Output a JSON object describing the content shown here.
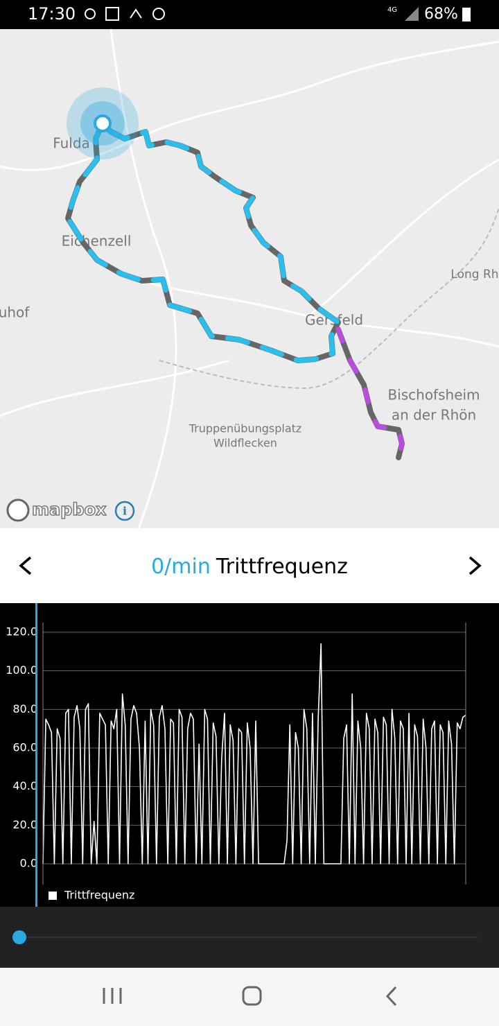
{
  "status_bar": {
    "time": "17:30",
    "network": "4G",
    "battery": "68%"
  },
  "map": {
    "places": [
      "Fulda",
      "Eichenzell",
      "uhof",
      "Long Rh",
      "Gersfeld",
      "Bischofsheim",
      "an der Rhön",
      "Truppenübungsplatz",
      "Wildflecken"
    ],
    "attribution": "mapbox"
  },
  "header": {
    "value": "0/min",
    "title": "Trittfrequenz"
  },
  "chart_data": {
    "type": "line",
    "ylim": [
      0,
      120
    ],
    "yticks": [
      {
        "value": 0,
        "label": "0.0"
      },
      {
        "value": 20,
        "label": "20.0"
      },
      {
        "value": 40,
        "label": "40.0"
      },
      {
        "value": 60,
        "label": "60.0"
      },
      {
        "value": 80,
        "label": "80.0"
      },
      {
        "value": 100,
        "label": "100.0"
      },
      {
        "value": 120,
        "label": "120.0"
      }
    ],
    "grid": true,
    "legend": "bottom-left",
    "series": [
      {
        "name": "Trittfrequenz",
        "color": "#ffffff",
        "values": [
          0,
          75,
          72,
          68,
          0,
          70,
          65,
          0,
          78,
          80,
          0,
          76,
          82,
          70,
          0,
          80,
          83,
          0,
          22,
          0,
          78,
          75,
          72,
          0,
          74,
          70,
          80,
          0,
          88,
          72,
          0,
          75,
          82,
          78,
          60,
          0,
          74,
          0,
          80,
          72,
          0,
          76,
          82,
          70,
          0,
          75,
          73,
          0,
          80,
          76,
          0,
          70,
          78,
          75,
          0,
          62,
          0,
          80,
          75,
          0,
          73,
          66,
          0,
          55,
          78,
          0,
          72,
          64,
          0,
          70,
          68,
          0,
          73,
          60,
          0,
          74,
          0,
          0,
          0,
          0,
          0,
          0,
          0,
          0,
          0,
          0,
          12,
          72,
          0,
          68,
          60,
          0,
          80,
          70,
          0,
          78,
          0,
          75,
          114,
          0,
          0,
          0,
          0,
          0,
          0,
          0,
          65,
          72,
          0,
          88,
          0,
          74,
          60,
          0,
          78,
          70,
          0,
          75,
          68,
          0,
          76,
          72,
          0,
          80,
          65,
          0,
          74,
          70,
          0,
          78,
          0,
          72,
          66,
          0,
          75,
          60,
          0,
          70,
          74,
          0,
          72,
          68,
          0,
          74,
          62,
          0,
          73,
          70,
          76,
          77
        ]
      }
    ]
  }
}
